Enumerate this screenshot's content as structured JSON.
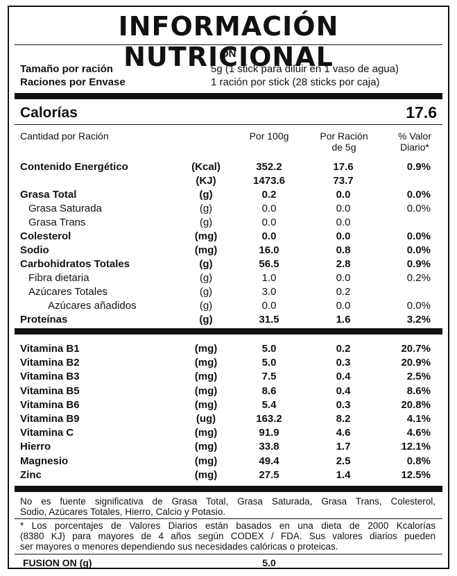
{
  "title": "INFORMACIÓN NUTRICIONAL",
  "product": "ON",
  "serving": {
    "size_label": "Tamaño por ración",
    "size_value": "5g (1 stick para diluir en 1 vaso de agua)",
    "per_container_label": "Raciones por Envase",
    "per_container_value": "1 ración por stick (28 sticks por caja)"
  },
  "calories": {
    "label": "Calorías",
    "value": "17.6"
  },
  "columns": {
    "name": "Cantidad por Ración",
    "per100": "Por 100g",
    "per_serving_1": "Por Ración",
    "per_serving_2": "de 5g",
    "dv_1": "% Valor",
    "dv_2": "Diario*"
  },
  "nutrients": [
    {
      "name": "Contenido Energético",
      "unit": "(Kcal)",
      "per100": "352.2",
      "per_serving": "17.6",
      "dv": "0.9%",
      "bold": true,
      "indent": 0
    },
    {
      "name": "",
      "unit": "(KJ)",
      "per100": "1473.6",
      "per_serving": "73.7",
      "dv": "",
      "bold": true,
      "indent": 0
    },
    {
      "name": "Grasa Total",
      "unit": "(g)",
      "per100": "0.2",
      "per_serving": "0.0",
      "dv": "0.0%",
      "bold": true,
      "indent": 0
    },
    {
      "name": "Grasa Saturada",
      "unit": "(g)",
      "per100": "0.0",
      "per_serving": "0.0",
      "dv": "0.0%",
      "bold": false,
      "indent": 1
    },
    {
      "name": "Grasa Trans",
      "unit": "(g)",
      "per100": "0.0",
      "per_serving": "0.0",
      "dv": "",
      "bold": false,
      "indent": 1
    },
    {
      "name": "Colesterol",
      "unit": "(mg)",
      "per100": "0.0",
      "per_serving": "0.0",
      "dv": "0.0%",
      "bold": true,
      "indent": 0
    },
    {
      "name": "Sodio",
      "unit": "(mg)",
      "per100": "16.0",
      "per_serving": "0.8",
      "dv": "0.0%",
      "bold": true,
      "indent": 0
    },
    {
      "name": "Carbohidratos Totales",
      "unit": "(g)",
      "per100": "56.5",
      "per_serving": "2.8",
      "dv": "0.9%",
      "bold": true,
      "indent": 0
    },
    {
      "name": "Fibra dietaria",
      "unit": "(g)",
      "per100": "1.0",
      "per_serving": "0.0",
      "dv": "0.2%",
      "bold": false,
      "indent": 1
    },
    {
      "name": "Azúcares Totales",
      "unit": "(g)",
      "per100": "3.0",
      "per_serving": "0.2",
      "dv": "",
      "bold": false,
      "indent": 1
    },
    {
      "name": "Azúcares añadidos",
      "unit": "(g)",
      "per100": "0.0",
      "per_serving": "0.0",
      "dv": "0.0%",
      "bold": false,
      "indent": 2
    },
    {
      "name": "Proteínas",
      "unit": "(g)",
      "per100": "31.5",
      "per_serving": "1.6",
      "dv": "3.2%",
      "bold": true,
      "indent": 0
    }
  ],
  "vitamins": [
    {
      "name": "Vitamina B1",
      "unit": "(mg)",
      "per100": "5.0",
      "per_serving": "0.2",
      "dv": "20.7%"
    },
    {
      "name": "Vitamina B2",
      "unit": "(mg)",
      "per100": "5.0",
      "per_serving": "0.3",
      "dv": "20.9%"
    },
    {
      "name": "Vitamina B3",
      "unit": "(mg)",
      "per100": "7.5",
      "per_serving": "0.4",
      "dv": "2.5%"
    },
    {
      "name": "Vitamina B5",
      "unit": "(mg)",
      "per100": "8.6",
      "per_serving": "0.4",
      "dv": "8.6%"
    },
    {
      "name": "Vitamina B6",
      "unit": "(mg)",
      "per100": "5.4",
      "per_serving": "0.3",
      "dv": "20.8%"
    },
    {
      "name": "Vitamina B9",
      "unit": "(ug)",
      "per100": "163.2",
      "per_serving": "8.2",
      "dv": "4.1%"
    },
    {
      "name": "Vitamina C",
      "unit": "(mg)",
      "per100": "91.9",
      "per_serving": "4.6",
      "dv": "4.6%"
    },
    {
      "name": "Hierro",
      "unit": "(mg)",
      "per100": "33.8",
      "per_serving": "1.7",
      "dv": "12.1%"
    },
    {
      "name": "Magnesio",
      "unit": "(mg)",
      "per100": "49.4",
      "per_serving": "2.5",
      "dv": "0.8%"
    },
    {
      "name": "Zinc",
      "unit": "(mg)",
      "per100": "27.5",
      "per_serving": "1.4",
      "dv": "12.5%"
    }
  ],
  "notes": {
    "not_significant_1": "No es fuente significativa de Grasa Total, Grasa Saturada, Grasa Trans, Colesterol,",
    "not_significant_2": "Sodio, Azúcares Totales, Hierro, Calcio y Potasio.",
    "footnote_1": "* Los porcentajes de Valores Diarios están basados en una dieta de 2000 Kcalorías",
    "footnote_2": "(8380 KJ) para mayores de 4 años según CODEX / FDA. Sus valores diarios pueden",
    "footnote_3": "ser mayores o menores dependiendo sus necesidades calóricas o proteicas."
  },
  "footer": {
    "label": "FUSION ON (g)",
    "value": "5.0"
  }
}
